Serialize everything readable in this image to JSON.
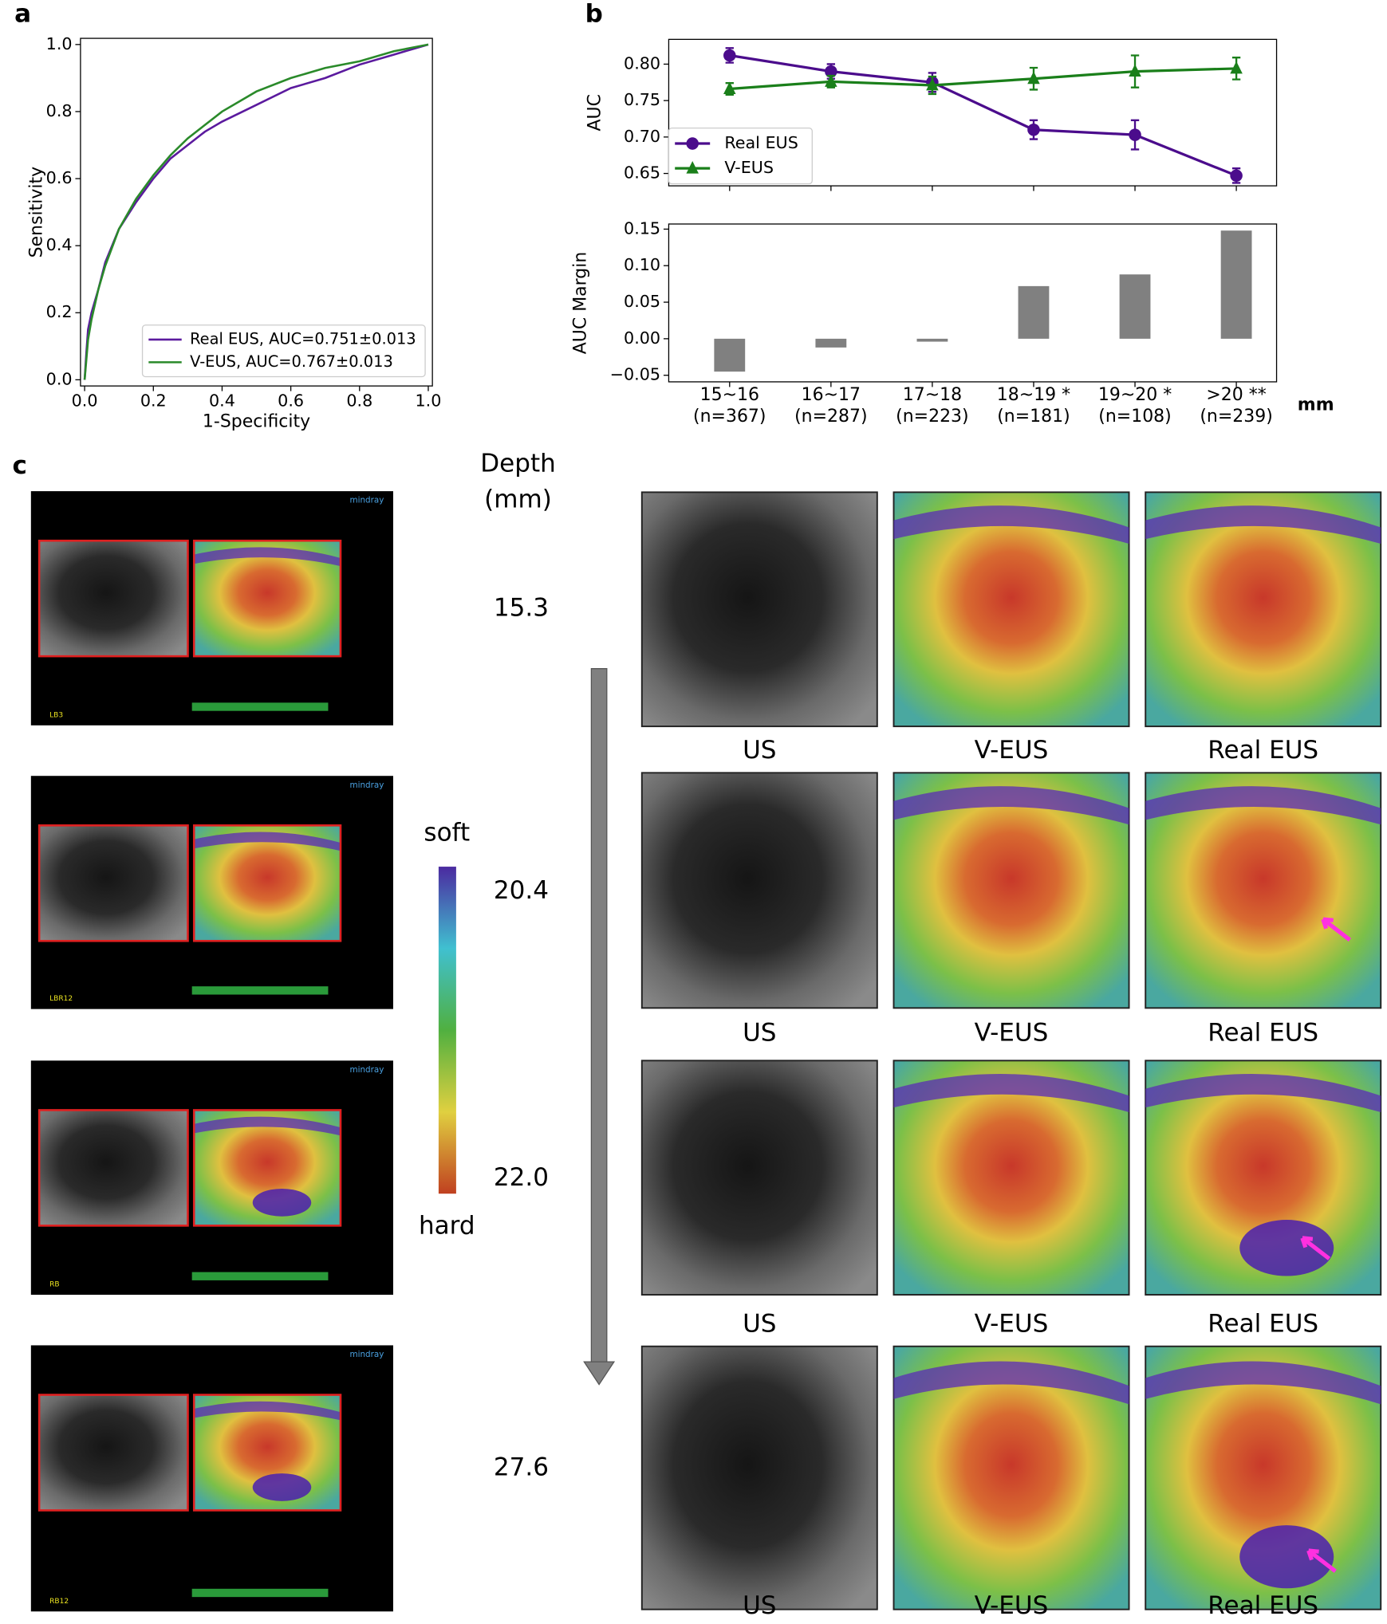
{
  "panel_labels": [
    "a",
    "b",
    "c"
  ],
  "chart_data": [
    {
      "type": "line",
      "x_label": "1-Specificity",
      "y_label": "Sensitivity",
      "xlim": [
        0,
        1
      ],
      "ylim": [
        0,
        1
      ],
      "xticks": [
        {
          "value": 0,
          "label": "0.0"
        },
        0.2,
        0.4,
        0.6,
        0.8,
        {
          "value": 1,
          "label": "1.0"
        }
      ],
      "yticks": [
        {
          "value": 0,
          "label": "0.0"
        },
        0.2,
        0.4,
        0.6,
        0.8,
        {
          "value": 1,
          "label": "1.0"
        }
      ],
      "legend": "lower right",
      "grid": false,
      "series": [
        {
          "name": "Real EUS, AUC=0.751±0.013",
          "color": "#5b1a9e",
          "x": [
            0,
            0.005,
            0.01,
            0.02,
            0.04,
            0.06,
            0.1,
            0.15,
            0.2,
            0.25,
            0.3,
            0.35,
            0.4,
            0.5,
            0.6,
            0.7,
            0.8,
            0.9,
            1
          ],
          "values": [
            0,
            0.08,
            0.15,
            0.2,
            0.27,
            0.35,
            0.45,
            0.53,
            0.6,
            0.66,
            0.7,
            0.74,
            0.77,
            0.82,
            0.87,
            0.9,
            0.94,
            0.97,
            1
          ]
        },
        {
          "name": "V-EUS, AUC=0.767±0.013",
          "color": "#2a8a2a",
          "x": [
            0,
            0.005,
            0.01,
            0.02,
            0.04,
            0.06,
            0.1,
            0.15,
            0.2,
            0.25,
            0.3,
            0.35,
            0.4,
            0.5,
            0.6,
            0.7,
            0.8,
            0.9,
            1
          ],
          "values": [
            0,
            0.06,
            0.12,
            0.18,
            0.27,
            0.34,
            0.45,
            0.54,
            0.61,
            0.67,
            0.72,
            0.76,
            0.8,
            0.86,
            0.9,
            0.93,
            0.95,
            0.98,
            1
          ]
        }
      ]
    },
    {
      "type": "errorline",
      "y_label": "AUC",
      "ylim": [
        0.633,
        0.834
      ],
      "yticks": [
        {
          "value": 0.8,
          "label": "0.80"
        },
        0.75,
        {
          "value": 0.7,
          "label": "0.70"
        },
        0.65
      ],
      "legend": "lower left",
      "grid": false,
      "series": [
        {
          "name": "Real EUS",
          "color": "#4b0c8c",
          "marker": "circle",
          "values": [
            0.812,
            0.79,
            0.775,
            0.71,
            0.703,
            0.647
          ],
          "errors": [
            0.01,
            0.01,
            0.013,
            0.013,
            0.02,
            0.01
          ]
        },
        {
          "name": "V-EUS",
          "color": "#1a7f1a",
          "marker": "triangle",
          "values": [
            0.766,
            0.776,
            0.771,
            0.78,
            0.79,
            0.794
          ],
          "errors": [
            0.008,
            0.008,
            0.012,
            0.015,
            0.022,
            0.015
          ]
        }
      ]
    },
    {
      "type": "bar",
      "y_label": "AUC Margin",
      "x_unit": "mm",
      "categories": [
        "15~16",
        "16~17",
        "17~18",
        "18~19 *",
        "19~20 *",
        ">20 **"
      ],
      "category_notes": [
        "(n=367)",
        "(n=287)",
        "(n=223)",
        "(n=181)",
        "(n=108)",
        "(n=239)"
      ],
      "values": [
        -0.045,
        -0.012,
        -0.004,
        0.072,
        0.088,
        0.148
      ],
      "color": "#808080",
      "ylim": [
        -0.059,
        0.157
      ],
      "yticks": [
        0.15,
        {
          "value": 0.1,
          "label": "0.10"
        },
        0.05,
        {
          "value": 0,
          "label": "0.00"
        },
        {
          "value": -0.05,
          "label": "−0.05"
        }
      ],
      "grid": false
    }
  ],
  "panel_c": {
    "depth_header": [
      "Depth",
      "(mm)"
    ],
    "colorbar": {
      "top": "soft",
      "bottom": "hard"
    },
    "rows": [
      {
        "depth": "15.3",
        "scan_brand": "mindray",
        "scan_label": "LB3",
        "image_labels": [
          "US",
          "V-EUS",
          "Real EUS"
        ]
      },
      {
        "depth": "20.4",
        "scan_brand": "mindray",
        "scan_label": "LBR12",
        "image_labels": [
          "US",
          "V-EUS",
          "Real EUS"
        ]
      },
      {
        "depth": "22.0",
        "scan_brand": "mindray",
        "scan_label": "RB",
        "image_labels": [
          "US",
          "V-EUS",
          "Real EUS"
        ]
      },
      {
        "depth": "27.6",
        "scan_brand": "mindray",
        "scan_label": "RB12",
        "image_labels": [
          "US",
          "V-EUS",
          "Real EUS"
        ]
      }
    ]
  }
}
